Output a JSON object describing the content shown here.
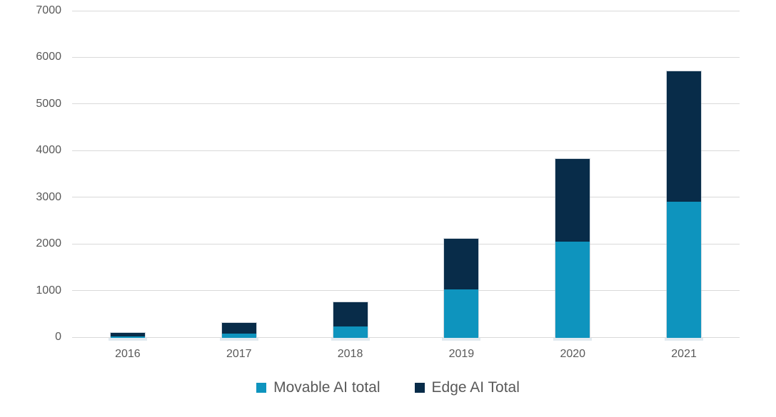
{
  "colors": {
    "gridline": "#d9d9d9",
    "axis_text": "#595959",
    "movable_series": "#0e94be",
    "edge_series": "#082c49"
  },
  "chart_data": {
    "type": "bar",
    "stacked": true,
    "title": "",
    "xlabel": "",
    "ylabel": "",
    "categories": [
      "2016",
      "2017",
      "2018",
      "2019",
      "2020",
      "2021"
    ],
    "series": [
      {
        "name": "Movable AI total",
        "color": "#0e94be",
        "values": [
          30,
          90,
          240,
          1040,
          2060,
          2920
        ]
      },
      {
        "name": "Edge AI Total",
        "color": "#082c49",
        "values": [
          75,
          230,
          520,
          1090,
          1780,
          2790
        ]
      }
    ],
    "totals": [
      105,
      320,
      760,
      2130,
      3840,
      5710
    ],
    "ylim": [
      0,
      7000
    ],
    "yticks": [
      0,
      1000,
      2000,
      3000,
      4000,
      5000,
      6000,
      7000
    ],
    "grid": true,
    "legend_position": "bottom"
  }
}
